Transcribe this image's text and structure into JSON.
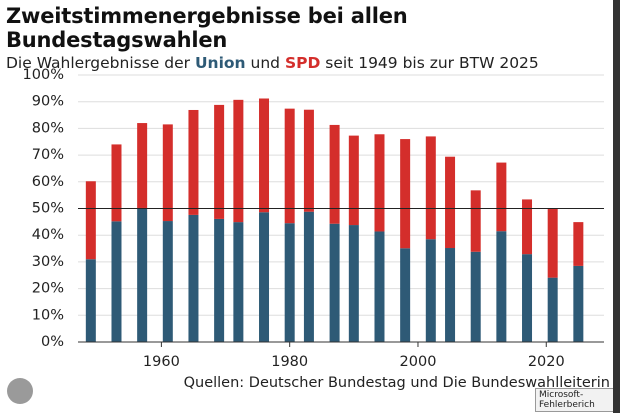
{
  "chart_data": {
    "type": "stacked_bar",
    "title": "Zweitstimmenergebnisse bei allen Bundestagswahlen",
    "subtitle_before": "Die Wahlergebnisse der",
    "subtitle_middle": "und",
    "subtitle_after": "seit 1949 bis zur BTW 2025",
    "source": "Quellen: Deutscher Bundestag und Die Bundeswahlleiterin",
    "tooltip": "Microsoft-Fehlerberich",
    "x": [
      1949,
      1953,
      1957,
      1961,
      1965,
      1969,
      1972,
      1976,
      1980,
      1983,
      1987,
      1990,
      1994,
      1998,
      2002,
      2005,
      2009,
      2013,
      2017,
      2021,
      2025
    ],
    "series": [
      {
        "name": "Union",
        "color": "#2e5a76",
        "values": [
          31.0,
          45.2,
          50.2,
          45.3,
          47.6,
          46.1,
          44.9,
          48.6,
          44.5,
          48.8,
          44.3,
          43.8,
          41.4,
          35.1,
          38.5,
          35.2,
          33.8,
          41.5,
          32.9,
          24.1,
          28.5
        ]
      },
      {
        "name": "SPD",
        "color": "#d42e2b",
        "values": [
          29.2,
          28.8,
          31.8,
          36.2,
          39.3,
          42.7,
          45.8,
          42.6,
          42.9,
          38.2,
          37.0,
          33.5,
          36.4,
          40.9,
          38.5,
          34.2,
          23.0,
          25.7,
          20.5,
          25.7,
          16.4
        ]
      }
    ],
    "xlim": [
      1947,
      2029
    ],
    "xticks": [
      1960,
      1980,
      2000,
      2020
    ],
    "ylim": [
      0,
      100
    ],
    "yticks": [
      {
        "value": 0,
        "label": "0%"
      },
      {
        "value": 10,
        "label": "10%"
      },
      {
        "value": 20,
        "label": "20%"
      },
      {
        "value": 30,
        "label": "30%"
      },
      {
        "value": 40,
        "label": "40%"
      },
      {
        "value": 50,
        "label": "50%"
      },
      {
        "value": 60,
        "label": "60%"
      },
      {
        "value": 70,
        "label": "70%"
      },
      {
        "value": 80,
        "label": "80%"
      },
      {
        "value": 90,
        "label": "90%"
      },
      {
        "value": 100,
        "label": "100%"
      }
    ],
    "reference_line": 50,
    "grid": true
  }
}
